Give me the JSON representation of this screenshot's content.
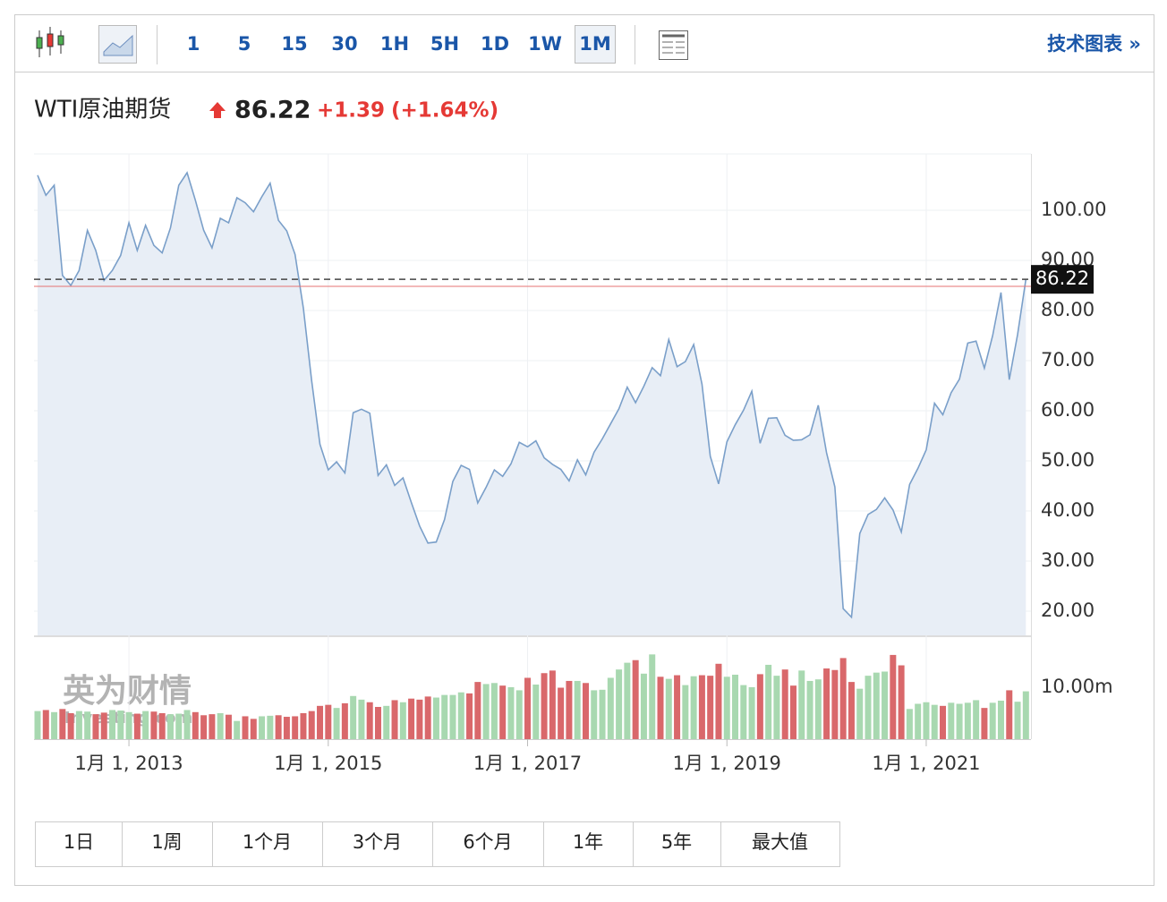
{
  "toolbar": {
    "intervals": [
      "1",
      "5",
      "15",
      "30",
      "1H",
      "5H",
      "1D",
      "1W",
      "1M"
    ],
    "active_interval": "1M",
    "link": "技术图表 »"
  },
  "header": {
    "title": "WTI原油期货",
    "price": "86.22",
    "change": "+1.39",
    "change_pct": "(+1.64%)"
  },
  "watermark": {
    "brand": "英为财情",
    "site": "Investing.com"
  },
  "chart_data": {
    "type": "line",
    "x": [
      "2012-02",
      "2012-03",
      "2012-04",
      "2012-05",
      "2012-06",
      "2012-07",
      "2012-08",
      "2012-09",
      "2012-10",
      "2012-11",
      "2012-12",
      "2013-01",
      "2013-02",
      "2013-03",
      "2013-04",
      "2013-05",
      "2013-06",
      "2013-07",
      "2013-08",
      "2013-09",
      "2013-10",
      "2013-11",
      "2013-12",
      "2014-01",
      "2014-02",
      "2014-03",
      "2014-04",
      "2014-05",
      "2014-06",
      "2014-07",
      "2014-08",
      "2014-09",
      "2014-10",
      "2014-11",
      "2014-12",
      "2015-01",
      "2015-02",
      "2015-03",
      "2015-04",
      "2015-05",
      "2015-06",
      "2015-07",
      "2015-08",
      "2015-09",
      "2015-10",
      "2015-11",
      "2015-12",
      "2016-01",
      "2016-02",
      "2016-03",
      "2016-04",
      "2016-05",
      "2016-06",
      "2016-07",
      "2016-08",
      "2016-09",
      "2016-10",
      "2016-11",
      "2016-12",
      "2017-01",
      "2017-02",
      "2017-03",
      "2017-04",
      "2017-05",
      "2017-06",
      "2017-07",
      "2017-08",
      "2017-09",
      "2017-10",
      "2017-11",
      "2017-12",
      "2018-01",
      "2018-02",
      "2018-03",
      "2018-04",
      "2018-05",
      "2018-06",
      "2018-07",
      "2018-08",
      "2018-09",
      "2018-10",
      "2018-11",
      "2018-12",
      "2019-01",
      "2019-02",
      "2019-03",
      "2019-04",
      "2019-05",
      "2019-06",
      "2019-07",
      "2019-08",
      "2019-09",
      "2019-10",
      "2019-11",
      "2019-12",
      "2020-01",
      "2020-02",
      "2020-03",
      "2020-04",
      "2020-05",
      "2020-06",
      "2020-07",
      "2020-08",
      "2020-09",
      "2020-10",
      "2020-11",
      "2020-12",
      "2021-01",
      "2021-02",
      "2021-03",
      "2021-04",
      "2021-05",
      "2021-06",
      "2021-07",
      "2021-08",
      "2021-09",
      "2021-10",
      "2021-11",
      "2021-12",
      "2022-01"
    ],
    "values": [
      107,
      103,
      105,
      87,
      85,
      88,
      96,
      92,
      86,
      88,
      91,
      97.5,
      92,
      97,
      93,
      91.5,
      96.5,
      105,
      107.5,
      102,
      96,
      92.5,
      98.4,
      97.5,
      102.5,
      101.5,
      99.7,
      102.7,
      105.4,
      98,
      95.9,
      91.2,
      80.5,
      66,
      53.3,
      48.2,
      49.8,
      47.6,
      59.6,
      60.3,
      59.5,
      47.1,
      49.2,
      45.1,
      46.6,
      41.7,
      37,
      33.6,
      33.8,
      38.3,
      45.9,
      49.1,
      48.3,
      41.6,
      44.7,
      48.2,
      46.9,
      49.4,
      53.7,
      52.8,
      54,
      50.6,
      49.3,
      48.3,
      46,
      50.2,
      47.2,
      51.7,
      54.4,
      57.4,
      60.4,
      64.7,
      61.6,
      64.9,
      68.6,
      67,
      74.2,
      68.8,
      69.8,
      73.2,
      65.3,
      50.9,
      45.4,
      53.8,
      57.2,
      60.1,
      63.9,
      53.5,
      58.5,
      58.6,
      55.1,
      54.1,
      54.2,
      55.2,
      61.1,
      51.6,
      44.8,
      20.5,
      18.8,
      35.5,
      39.3,
      40.3,
      42.6,
      40.2,
      35.8,
      45.3,
      48.5,
      52.2,
      61.5,
      59.2,
      63.6,
      66.3,
      73.5,
      73.9,
      68.5,
      75,
      83.6,
      66.2,
      75.2,
      86.22
    ],
    "color": "#7a9fc9",
    "fill": "#e8eef6",
    "ylim": [
      15.18,
      111.25
    ],
    "yticks": [
      {
        "value": 100,
        "label": "100.00"
      },
      {
        "value": 90,
        "label": "90.00"
      },
      {
        "value": 80,
        "label": "80.00"
      },
      {
        "value": 70,
        "label": "70.00"
      },
      {
        "value": 60,
        "label": "60.00"
      },
      {
        "value": 50,
        "label": "50.00"
      },
      {
        "value": 40,
        "label": "40.00"
      },
      {
        "value": 30,
        "label": "30.00"
      },
      {
        "value": 20,
        "label": "20.00"
      }
    ],
    "xticks": [
      {
        "value": "2013-01",
        "label": "1月 1, 2013"
      },
      {
        "value": "2015-01",
        "label": "1月 1, 2015"
      },
      {
        "value": "2017-01",
        "label": "1月 1, 2017"
      },
      {
        "value": "2019-01",
        "label": "1月 1, 2019"
      },
      {
        "value": "2021-01",
        "label": "1月 1, 2021"
      }
    ],
    "volume": {
      "values": [
        5.4,
        5.6,
        5.2,
        5.8,
        5.0,
        5.4,
        5.3,
        4.8,
        5.1,
        5.6,
        5.5,
        5.2,
        4.9,
        5.4,
        5.3,
        5.0,
        4.8,
        4.9,
        5.6,
        5.2,
        4.6,
        4.8,
        5.0,
        4.7,
        3.5,
        4.4,
        3.9,
        4.4,
        4.5,
        4.6,
        4.3,
        4.4,
        5.0,
        5.4,
        6.4,
        6.6,
        6.0,
        6.9,
        8.3,
        7.6,
        7.1,
        6.2,
        6.4,
        7.5,
        7.1,
        7.8,
        7.6,
        8.2,
        8.0,
        8.5,
        8.5,
        9.0,
        8.8,
        11.0,
        10.6,
        10.8,
        10.3,
        10.0,
        9.4,
        11.8,
        10.5,
        12.7,
        13.2,
        9.9,
        11.2,
        11.2,
        10.8,
        9.4,
        9.5,
        11.8,
        13.4,
        14.7,
        15.2,
        12.6,
        16.3,
        12.0,
        11.6,
        12.3,
        10.4,
        12.1,
        12.3,
        12.2,
        14.5,
        12.0,
        12.4,
        10.4,
        10.0,
        12.5,
        14.3,
        12.2,
        13.4,
        10.3,
        13.2,
        11.2,
        11.5,
        13.6,
        13.3,
        15.6,
        11.0,
        9.7,
        12.2,
        12.8,
        13.0,
        16.2,
        14.2,
        5.8,
        6.8,
        7.1,
        6.6,
        6.4,
        7.0,
        6.8,
        7.0,
        7.5,
        6.0,
        7.0,
        7.4,
        9.4,
        7.2,
        9.2
      ],
      "up_color": "#a8d8b0",
      "down_color": "#d9686b",
      "ylim": [
        0,
        19.8
      ],
      "yticks": [
        {
          "value": 10,
          "label": "10.00m"
        }
      ]
    }
  },
  "ranges": [
    "1日",
    "1周",
    "1个月",
    "3个月",
    "6个月",
    "1年",
    "5年",
    "最大值"
  ]
}
